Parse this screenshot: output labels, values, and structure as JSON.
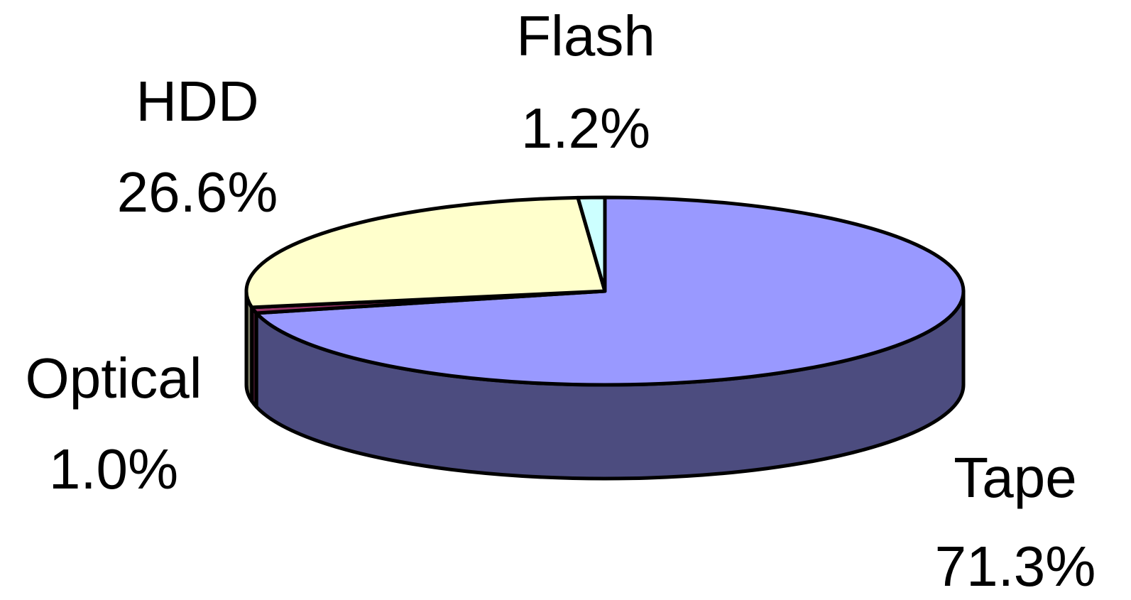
{
  "chart_data": {
    "type": "pie",
    "three_d": true,
    "series": [
      {
        "name": "",
        "values": [
          71.3,
          1.0,
          26.6,
          1.2
        ]
      }
    ],
    "categories": [
      "Tape",
      "Optical",
      "HDD",
      "Flash"
    ],
    "slices": [
      {
        "label": "Tape",
        "value": 71.3,
        "display": "71.3%",
        "color": "#9999FF",
        "side_color": "#4C4C7F"
      },
      {
        "label": "Optical",
        "value": 1.0,
        "display": "1.0%",
        "color": "#993366",
        "side_color": "#4C1933"
      },
      {
        "label": "HDD",
        "value": 26.6,
        "display": "26.6%",
        "color": "#FFFFCC",
        "side_color": "#7F7F66"
      },
      {
        "label": "Flash",
        "value": 1.2,
        "display": "1.2%",
        "color": "#CCFFFF",
        "side_color": "#667F7F"
      }
    ],
    "start_angle_deg": 0,
    "direction": "clockwise",
    "legend": "none",
    "data_labels": "category and percentage"
  }
}
